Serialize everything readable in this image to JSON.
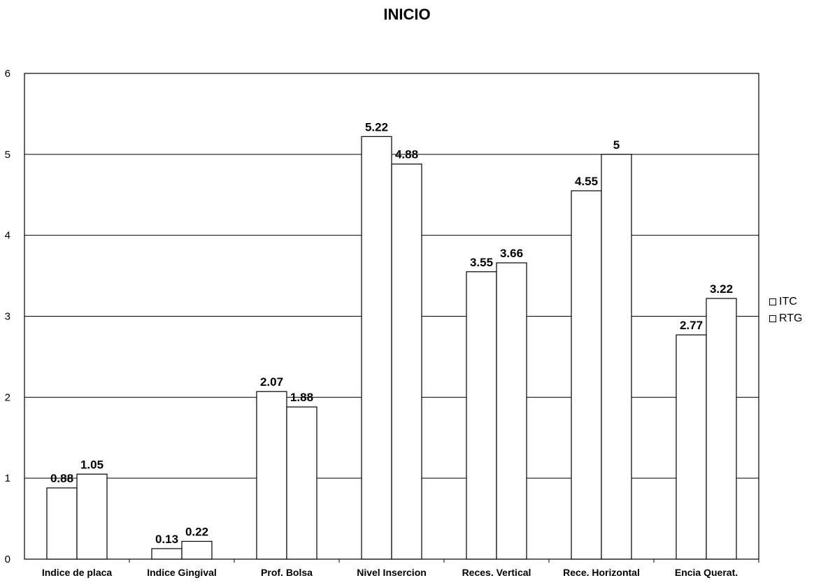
{
  "chart_data": {
    "type": "bar",
    "title": "INICIO",
    "categories": [
      "Indice de placa",
      "Indice Gingival",
      "Prof. Bolsa",
      "Nivel Insercion",
      "Reces. Vertical",
      "Rece. Horizontal",
      "Encia Querat."
    ],
    "series": [
      {
        "name": "ITC",
        "values": [
          0.88,
          0.13,
          2.07,
          5.22,
          3.55,
          4.55,
          2.77
        ],
        "labels": [
          "0.88",
          "0.13",
          "2.07",
          "5.22",
          "3.55",
          "4.55",
          "2.77"
        ]
      },
      {
        "name": "RTG",
        "values": [
          1.05,
          0.22,
          1.88,
          4.88,
          3.66,
          5,
          3.22
        ],
        "labels": [
          "1.05",
          "0.22",
          "1.88",
          "4.88",
          "3.66",
          "5",
          "3.22"
        ]
      }
    ],
    "ylim": [
      0,
      6
    ],
    "yticks": [
      "0",
      "1",
      "2",
      "3",
      "4",
      "5",
      "6"
    ],
    "grid": true,
    "legend_position": "right",
    "bar_fill": "#ffffff",
    "bar_stroke": "#000000"
  }
}
